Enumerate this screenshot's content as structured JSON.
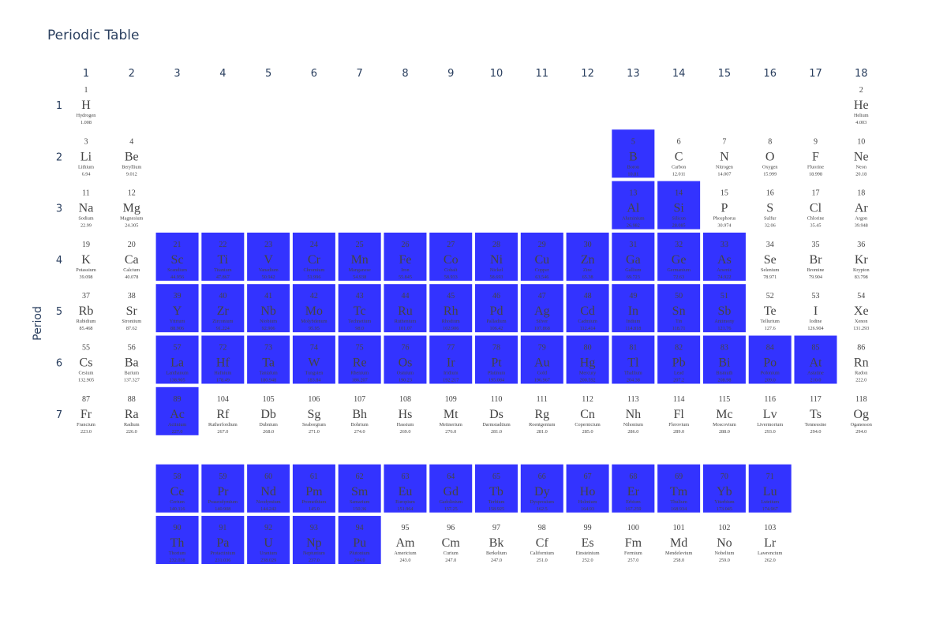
{
  "chart_data": {
    "type": "heatmap",
    "title": "Periodic Table",
    "xlabel": "",
    "ylabel": "Period",
    "x_ticks": [
      "1",
      "2",
      "3",
      "4",
      "5",
      "6",
      "7",
      "8",
      "9",
      "10",
      "11",
      "12",
      "13",
      "14",
      "15",
      "16",
      "17",
      "18"
    ],
    "y_ticks": [
      "1",
      "2",
      "3",
      "4",
      "5",
      "6",
      "7"
    ],
    "highlight_color": "#3333ff",
    "text_color": "#444444",
    "axis_text_color": "#2a3f5f",
    "highlighted": [
      5,
      13,
      14,
      21,
      22,
      23,
      24,
      25,
      26,
      27,
      28,
      29,
      30,
      31,
      32,
      33,
      39,
      40,
      41,
      42,
      43,
      44,
      45,
      46,
      47,
      48,
      49,
      50,
      51,
      57,
      72,
      73,
      74,
      75,
      76,
      77,
      78,
      79,
      80,
      81,
      82,
      83,
      84,
      85,
      89,
      58,
      59,
      60,
      61,
      62,
      63,
      64,
      65,
      66,
      67,
      68,
      69,
      70,
      71,
      90,
      91,
      92,
      93,
      94
    ],
    "elements": [
      {
        "n": 1,
        "s": "H",
        "name": "Hydrogen",
        "m": "1.008",
        "row": 1,
        "col": 1
      },
      {
        "n": 2,
        "s": "He",
        "name": "Helium",
        "m": "4.003",
        "row": 1,
        "col": 18
      },
      {
        "n": 3,
        "s": "Li",
        "name": "Lithium",
        "m": "6.94",
        "row": 2,
        "col": 1
      },
      {
        "n": 4,
        "s": "Be",
        "name": "Beryllium",
        "m": "9.012",
        "row": 2,
        "col": 2
      },
      {
        "n": 5,
        "s": "B",
        "name": "Boron",
        "m": "10.81",
        "row": 2,
        "col": 13
      },
      {
        "n": 6,
        "s": "C",
        "name": "Carbon",
        "m": "12.011",
        "row": 2,
        "col": 14
      },
      {
        "n": 7,
        "s": "N",
        "name": "Nitrogen",
        "m": "14.007",
        "row": 2,
        "col": 15
      },
      {
        "n": 8,
        "s": "O",
        "name": "Oxygen",
        "m": "15.999",
        "row": 2,
        "col": 16
      },
      {
        "n": 9,
        "s": "F",
        "name": "Fluorine",
        "m": "18.998",
        "row": 2,
        "col": 17
      },
      {
        "n": 10,
        "s": "Ne",
        "name": "Neon",
        "m": "20.18",
        "row": 2,
        "col": 18
      },
      {
        "n": 11,
        "s": "Na",
        "name": "Sodium",
        "m": "22.99",
        "row": 3,
        "col": 1
      },
      {
        "n": 12,
        "s": "Mg",
        "name": "Magnesium",
        "m": "24.305",
        "row": 3,
        "col": 2
      },
      {
        "n": 13,
        "s": "Al",
        "name": "Aluminium",
        "m": "26.982",
        "row": 3,
        "col": 13
      },
      {
        "n": 14,
        "s": "Si",
        "name": "Silicon",
        "m": "28.085",
        "row": 3,
        "col": 14
      },
      {
        "n": 15,
        "s": "P",
        "name": "Phosphorus",
        "m": "30.974",
        "row": 3,
        "col": 15
      },
      {
        "n": 16,
        "s": "S",
        "name": "Sulfur",
        "m": "32.06",
        "row": 3,
        "col": 16
      },
      {
        "n": 17,
        "s": "Cl",
        "name": "Chlorine",
        "m": "35.45",
        "row": 3,
        "col": 17
      },
      {
        "n": 18,
        "s": "Ar",
        "name": "Argon",
        "m": "39.948",
        "row": 3,
        "col": 18
      },
      {
        "n": 19,
        "s": "K",
        "name": "Potassium",
        "m": "39.098",
        "row": 4,
        "col": 1
      },
      {
        "n": 20,
        "s": "Ca",
        "name": "Calcium",
        "m": "40.078",
        "row": 4,
        "col": 2
      },
      {
        "n": 21,
        "s": "Sc",
        "name": "Scandium",
        "m": "44.956",
        "row": 4,
        "col": 3
      },
      {
        "n": 22,
        "s": "Ti",
        "name": "Titanium",
        "m": "47.867",
        "row": 4,
        "col": 4
      },
      {
        "n": 23,
        "s": "V",
        "name": "Vanadium",
        "m": "50.942",
        "row": 4,
        "col": 5
      },
      {
        "n": 24,
        "s": "Cr",
        "name": "Chromium",
        "m": "51.996",
        "row": 4,
        "col": 6
      },
      {
        "n": 25,
        "s": "Mn",
        "name": "Manganese",
        "m": "54.938",
        "row": 4,
        "col": 7
      },
      {
        "n": 26,
        "s": "Fe",
        "name": "Iron",
        "m": "55.845",
        "row": 4,
        "col": 8
      },
      {
        "n": 27,
        "s": "Co",
        "name": "Cobalt",
        "m": "58.933",
        "row": 4,
        "col": 9
      },
      {
        "n": 28,
        "s": "Ni",
        "name": "Nickel",
        "m": "58.693",
        "row": 4,
        "col": 10
      },
      {
        "n": 29,
        "s": "Cu",
        "name": "Copper",
        "m": "63.546",
        "row": 4,
        "col": 11
      },
      {
        "n": 30,
        "s": "Zn",
        "name": "Zinc",
        "m": "65.38",
        "row": 4,
        "col": 12
      },
      {
        "n": 31,
        "s": "Ga",
        "name": "Gallium",
        "m": "69.723",
        "row": 4,
        "col": 13
      },
      {
        "n": 32,
        "s": "Ge",
        "name": "Germanium",
        "m": "72.63",
        "row": 4,
        "col": 14
      },
      {
        "n": 33,
        "s": "As",
        "name": "Arsenic",
        "m": "74.922",
        "row": 4,
        "col": 15
      },
      {
        "n": 34,
        "s": "Se",
        "name": "Selenium",
        "m": "78.971",
        "row": 4,
        "col": 16
      },
      {
        "n": 35,
        "s": "Br",
        "name": "Bromine",
        "m": "79.904",
        "row": 4,
        "col": 17
      },
      {
        "n": 36,
        "s": "Kr",
        "name": "Krypton",
        "m": "83.798",
        "row": 4,
        "col": 18
      },
      {
        "n": 37,
        "s": "Rb",
        "name": "Rubidium",
        "m": "85.468",
        "row": 5,
        "col": 1
      },
      {
        "n": 38,
        "s": "Sr",
        "name": "Strontium",
        "m": "87.62",
        "row": 5,
        "col": 2
      },
      {
        "n": 39,
        "s": "Y",
        "name": "Yttrium",
        "m": "88.906",
        "row": 5,
        "col": 3
      },
      {
        "n": 40,
        "s": "Zr",
        "name": "Zirconium",
        "m": "91.224",
        "row": 5,
        "col": 4
      },
      {
        "n": 41,
        "s": "Nb",
        "name": "Niobium",
        "m": "92.906",
        "row": 5,
        "col": 5
      },
      {
        "n": 42,
        "s": "Mo",
        "name": "Molybdenum",
        "m": "95.95",
        "row": 5,
        "col": 6
      },
      {
        "n": 43,
        "s": "Tc",
        "name": "Technetium",
        "m": "98.0",
        "row": 5,
        "col": 7
      },
      {
        "n": 44,
        "s": "Ru",
        "name": "Ruthenium",
        "m": "101.07",
        "row": 5,
        "col": 8
      },
      {
        "n": 45,
        "s": "Rh",
        "name": "Rhodium",
        "m": "102.906",
        "row": 5,
        "col": 9
      },
      {
        "n": 46,
        "s": "Pd",
        "name": "Palladium",
        "m": "106.42",
        "row": 5,
        "col": 10
      },
      {
        "n": 47,
        "s": "Ag",
        "name": "Silver",
        "m": "107.868",
        "row": 5,
        "col": 11
      },
      {
        "n": 48,
        "s": "Cd",
        "name": "Cadmium",
        "m": "112.414",
        "row": 5,
        "col": 12
      },
      {
        "n": 49,
        "s": "In",
        "name": "Indium",
        "m": "114.818",
        "row": 5,
        "col": 13
      },
      {
        "n": 50,
        "s": "Sn",
        "name": "Tin",
        "m": "118.71",
        "row": 5,
        "col": 14
      },
      {
        "n": 51,
        "s": "Sb",
        "name": "Antimony",
        "m": "121.76",
        "row": 5,
        "col": 15
      },
      {
        "n": 52,
        "s": "Te",
        "name": "Tellurium",
        "m": "127.6",
        "row": 5,
        "col": 16
      },
      {
        "n": 53,
        "s": "I",
        "name": "Iodine",
        "m": "126.904",
        "row": 5,
        "col": 17
      },
      {
        "n": 54,
        "s": "Xe",
        "name": "Xenon",
        "m": "131.293",
        "row": 5,
        "col": 18
      },
      {
        "n": 55,
        "s": "Cs",
        "name": "Cesium",
        "m": "132.905",
        "row": 6,
        "col": 1
      },
      {
        "n": 56,
        "s": "Ba",
        "name": "Barium",
        "m": "137.327",
        "row": 6,
        "col": 2
      },
      {
        "n": 57,
        "s": "La",
        "name": "Lanthanum",
        "m": "138.905",
        "row": 6,
        "col": 3
      },
      {
        "n": 72,
        "s": "Hf",
        "name": "Hafnium",
        "m": "178.49",
        "row": 6,
        "col": 4
      },
      {
        "n": 73,
        "s": "Ta",
        "name": "Tantalum",
        "m": "180.948",
        "row": 6,
        "col": 5
      },
      {
        "n": 74,
        "s": "W",
        "name": "Tungsten",
        "m": "183.84",
        "row": 6,
        "col": 6
      },
      {
        "n": 75,
        "s": "Re",
        "name": "Rhenium",
        "m": "186.207",
        "row": 6,
        "col": 7
      },
      {
        "n": 76,
        "s": "Os",
        "name": "Osmium",
        "m": "190.23",
        "row": 6,
        "col": 8
      },
      {
        "n": 77,
        "s": "Ir",
        "name": "Iridium",
        "m": "192.217",
        "row": 6,
        "col": 9
      },
      {
        "n": 78,
        "s": "Pt",
        "name": "Platinum",
        "m": "195.084",
        "row": 6,
        "col": 10
      },
      {
        "n": 79,
        "s": "Au",
        "name": "Gold",
        "m": "196.967",
        "row": 6,
        "col": 11
      },
      {
        "n": 80,
        "s": "Hg",
        "name": "Mercury",
        "m": "200.592",
        "row": 6,
        "col": 12
      },
      {
        "n": 81,
        "s": "Tl",
        "name": "Thallium",
        "m": "204.38",
        "row": 6,
        "col": 13
      },
      {
        "n": 82,
        "s": "Pb",
        "name": "Lead",
        "m": "207.2",
        "row": 6,
        "col": 14
      },
      {
        "n": 83,
        "s": "Bi",
        "name": "Bismuth",
        "m": "208.98",
        "row": 6,
        "col": 15
      },
      {
        "n": 84,
        "s": "Po",
        "name": "Polonium",
        "m": "209.0",
        "row": 6,
        "col": 16
      },
      {
        "n": 85,
        "s": "At",
        "name": "Astatine",
        "m": "210.0",
        "row": 6,
        "col": 17
      },
      {
        "n": 86,
        "s": "Rn",
        "name": "Radon",
        "m": "222.0",
        "row": 6,
        "col": 18
      },
      {
        "n": 87,
        "s": "Fr",
        "name": "Francium",
        "m": "223.0",
        "row": 7,
        "col": 1
      },
      {
        "n": 88,
        "s": "Ra",
        "name": "Radium",
        "m": "226.0",
        "row": 7,
        "col": 2
      },
      {
        "n": 89,
        "s": "Ac",
        "name": "Actinium",
        "m": "227.0",
        "row": 7,
        "col": 3
      },
      {
        "n": 104,
        "s": "Rf",
        "name": "Rutherfordium",
        "m": "267.0",
        "row": 7,
        "col": 4
      },
      {
        "n": 105,
        "s": "Db",
        "name": "Dubnium",
        "m": "268.0",
        "row": 7,
        "col": 5
      },
      {
        "n": 106,
        "s": "Sg",
        "name": "Seaborgium",
        "m": "271.0",
        "row": 7,
        "col": 6
      },
      {
        "n": 107,
        "s": "Bh",
        "name": "Bohrium",
        "m": "274.0",
        "row": 7,
        "col": 7
      },
      {
        "n": 108,
        "s": "Hs",
        "name": "Hassium",
        "m": "269.0",
        "row": 7,
        "col": 8
      },
      {
        "n": 109,
        "s": "Mt",
        "name": "Meitnerium",
        "m": "276.0",
        "row": 7,
        "col": 9
      },
      {
        "n": 110,
        "s": "Ds",
        "name": "Darmstadtium",
        "m": "281.0",
        "row": 7,
        "col": 10
      },
      {
        "n": 111,
        "s": "Rg",
        "name": "Roentgenium",
        "m": "281.0",
        "row": 7,
        "col": 11
      },
      {
        "n": 112,
        "s": "Cn",
        "name": "Copernicium",
        "m": "285.0",
        "row": 7,
        "col": 12
      },
      {
        "n": 113,
        "s": "Nh",
        "name": "Nihonium",
        "m": "286.0",
        "row": 7,
        "col": 13
      },
      {
        "n": 114,
        "s": "Fl",
        "name": "Flerovium",
        "m": "289.0",
        "row": 7,
        "col": 14
      },
      {
        "n": 115,
        "s": "Mc",
        "name": "Moscovium",
        "m": "288.0",
        "row": 7,
        "col": 15
      },
      {
        "n": 116,
        "s": "Lv",
        "name": "Livermorium",
        "m": "293.0",
        "row": 7,
        "col": 16
      },
      {
        "n": 117,
        "s": "Ts",
        "name": "Tennessine",
        "m": "294.0",
        "row": 7,
        "col": 17
      },
      {
        "n": 118,
        "s": "Og",
        "name": "Oganesson",
        "m": "294.0",
        "row": 7,
        "col": 18
      },
      {
        "n": 58,
        "s": "Ce",
        "name": "Cerium",
        "m": "140.116",
        "row": 8.5,
        "col": 3
      },
      {
        "n": 59,
        "s": "Pr",
        "name": "Praseodymium",
        "m": "140.908",
        "row": 8.5,
        "col": 4
      },
      {
        "n": 60,
        "s": "Nd",
        "name": "Neodymium",
        "m": "144.242",
        "row": 8.5,
        "col": 5
      },
      {
        "n": 61,
        "s": "Pm",
        "name": "Promethium",
        "m": "145.0",
        "row": 8.5,
        "col": 6
      },
      {
        "n": 62,
        "s": "Sm",
        "name": "Samarium",
        "m": "150.36",
        "row": 8.5,
        "col": 7
      },
      {
        "n": 63,
        "s": "Eu",
        "name": "Europium",
        "m": "151.964",
        "row": 8.5,
        "col": 8
      },
      {
        "n": 64,
        "s": "Gd",
        "name": "Gadolinium",
        "m": "157.25",
        "row": 8.5,
        "col": 9
      },
      {
        "n": 65,
        "s": "Tb",
        "name": "Terbium",
        "m": "158.925",
        "row": 8.5,
        "col": 10
      },
      {
        "n": 66,
        "s": "Dy",
        "name": "Dysprosium",
        "m": "162.5",
        "row": 8.5,
        "col": 11
      },
      {
        "n": 67,
        "s": "Ho",
        "name": "Holmium",
        "m": "164.93",
        "row": 8.5,
        "col": 12
      },
      {
        "n": 68,
        "s": "Er",
        "name": "Erbium",
        "m": "167.259",
        "row": 8.5,
        "col": 13
      },
      {
        "n": 69,
        "s": "Tm",
        "name": "Thulium",
        "m": "168.934",
        "row": 8.5,
        "col": 14
      },
      {
        "n": 70,
        "s": "Yb",
        "name": "Ytterbium",
        "m": "173.045",
        "row": 8.5,
        "col": 15
      },
      {
        "n": 71,
        "s": "Lu",
        "name": "Lutetium",
        "m": "174.967",
        "row": 8.5,
        "col": 16
      },
      {
        "n": 90,
        "s": "Th",
        "name": "Thorium",
        "m": "232.038",
        "row": 9.5,
        "col": 3
      },
      {
        "n": 91,
        "s": "Pa",
        "name": "Protactinium",
        "m": "231.036",
        "row": 9.5,
        "col": 4
      },
      {
        "n": 92,
        "s": "U",
        "name": "Uranium",
        "m": "238.029",
        "row": 9.5,
        "col": 5
      },
      {
        "n": 93,
        "s": "Np",
        "name": "Neptunium",
        "m": "237.0",
        "row": 9.5,
        "col": 6
      },
      {
        "n": 94,
        "s": "Pu",
        "name": "Plutonium",
        "m": "244.0",
        "row": 9.5,
        "col": 7
      },
      {
        "n": 95,
        "s": "Am",
        "name": "Americium",
        "m": "243.0",
        "row": 9.5,
        "col": 8
      },
      {
        "n": 96,
        "s": "Cm",
        "name": "Curium",
        "m": "247.0",
        "row": 9.5,
        "col": 9
      },
      {
        "n": 97,
        "s": "Bk",
        "name": "Berkelium",
        "m": "247.0",
        "row": 9.5,
        "col": 10
      },
      {
        "n": 98,
        "s": "Cf",
        "name": "Californium",
        "m": "251.0",
        "row": 9.5,
        "col": 11
      },
      {
        "n": 99,
        "s": "Es",
        "name": "Einsteinium",
        "m": "252.0",
        "row": 9.5,
        "col": 12
      },
      {
        "n": 100,
        "s": "Fm",
        "name": "Fermium",
        "m": "257.0",
        "row": 9.5,
        "col": 13
      },
      {
        "n": 101,
        "s": "Md",
        "name": "Mendelevium",
        "m": "258.0",
        "row": 9.5,
        "col": 14
      },
      {
        "n": 102,
        "s": "No",
        "name": "Nobelium",
        "m": "259.0",
        "row": 9.5,
        "col": 15
      },
      {
        "n": 103,
        "s": "Lr",
        "name": "Lawrencium",
        "m": "262.0",
        "row": 9.5,
        "col": 16
      }
    ]
  }
}
